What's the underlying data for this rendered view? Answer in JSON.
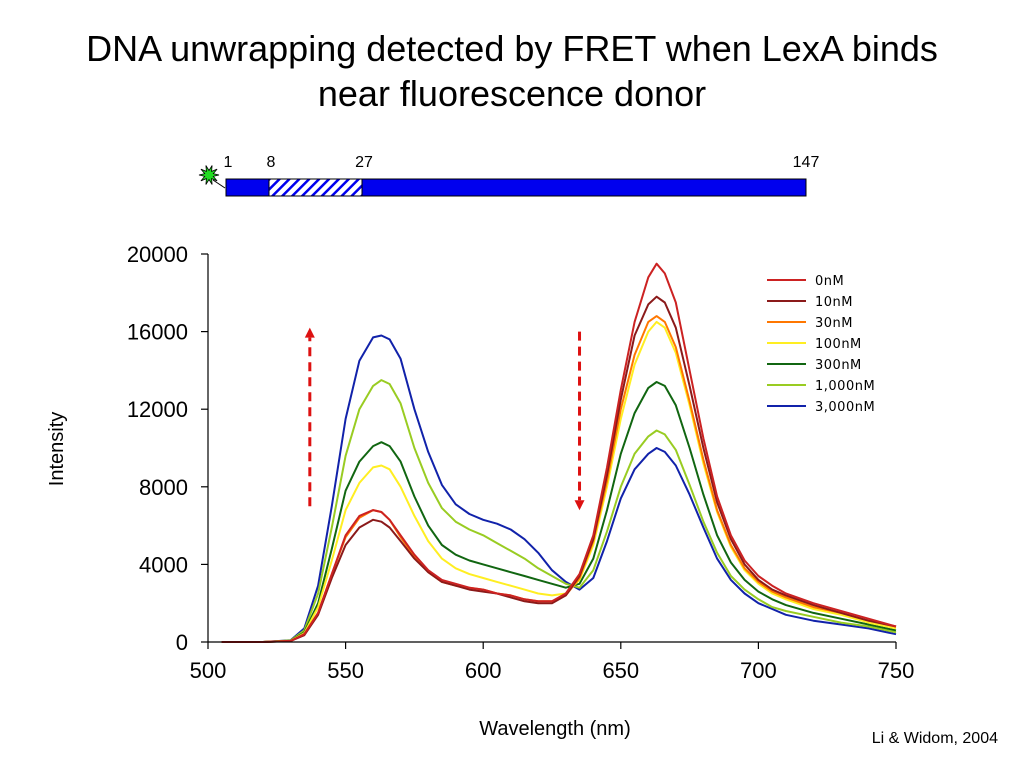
{
  "slide": {
    "title_line1": "DNA unwrapping detected by FRET when LexA binds",
    "title_line2": "near fluorescence donor",
    "credit": "Li & Widom, 2004"
  },
  "dna_map": {
    "positions": [
      "1",
      "8",
      "27",
      "147"
    ],
    "segments": [
      {
        "from": 1,
        "to": 8,
        "style": "solid"
      },
      {
        "from": 8,
        "to": 27,
        "style": "hatched"
      },
      {
        "from": 27,
        "to": 147,
        "style": "solid"
      }
    ],
    "fill_color": "#0000ee",
    "donor_color": "#22dd22"
  },
  "chart_data": {
    "type": "line",
    "xlabel": "Wavelength (nm)",
    "ylabel": "Intensity",
    "xlim": [
      500,
      750
    ],
    "ylim": [
      0,
      20000
    ],
    "xticks": [
      "500",
      "550",
      "600",
      "650",
      "700",
      "750"
    ],
    "yticks": [
      "0",
      "4000",
      "8000",
      "12000",
      "16000",
      "20000"
    ],
    "grid": false,
    "legend_position": "top-right",
    "x": [
      505,
      520,
      530,
      535,
      540,
      545,
      550,
      555,
      560,
      563,
      566,
      570,
      575,
      580,
      585,
      590,
      595,
      600,
      605,
      610,
      615,
      620,
      625,
      630,
      635,
      640,
      645,
      650,
      655,
      660,
      663,
      666,
      670,
      675,
      680,
      685,
      690,
      695,
      700,
      705,
      710,
      720,
      730,
      740,
      750
    ],
    "series": [
      {
        "name": "0nM",
        "color": "#cc2222",
        "values": [
          0,
          0,
          50,
          400,
          1500,
          3500,
          5500,
          6500,
          6800,
          6700,
          6300,
          5500,
          4500,
          3700,
          3200,
          3000,
          2800,
          2700,
          2500,
          2400,
          2200,
          2100,
          2100,
          2500,
          3500,
          5500,
          9000,
          13000,
          16500,
          18800,
          19500,
          19000,
          17500,
          14000,
          10500,
          7500,
          5500,
          4200,
          3400,
          2900,
          2500,
          2000,
          1600,
          1200,
          800
        ]
      },
      {
        "name": "10nM",
        "color": "#8b1a1a",
        "values": [
          0,
          0,
          50,
          350,
          1400,
          3300,
          5000,
          5900,
          6300,
          6200,
          5900,
          5200,
          4300,
          3600,
          3100,
          2900,
          2700,
          2600,
          2500,
          2300,
          2100,
          2000,
          2000,
          2400,
          3400,
          5300,
          8600,
          12500,
          15800,
          17400,
          17800,
          17500,
          16200,
          13200,
          10000,
          7200,
          5300,
          4000,
          3200,
          2700,
          2400,
          1900,
          1500,
          1100,
          800
        ]
      },
      {
        "name": "30nM",
        "color": "#ff7700",
        "values": [
          0,
          0,
          50,
          400,
          1500,
          3500,
          5400,
          6400,
          6800,
          6700,
          6300,
          5400,
          4400,
          3600,
          3100,
          2900,
          2800,
          2700,
          2500,
          2400,
          2200,
          2100,
          2100,
          2400,
          3300,
          5200,
          8300,
          12000,
          14800,
          16500,
          16800,
          16500,
          15200,
          12400,
          9400,
          6800,
          5000,
          3800,
          3100,
          2600,
          2300,
          1800,
          1500,
          1100,
          800
        ]
      },
      {
        "name": "100nM",
        "color": "#ffee22",
        "values": [
          0,
          0,
          60,
          450,
          1800,
          4200,
          6800,
          8200,
          9000,
          9100,
          8900,
          8000,
          6500,
          5200,
          4300,
          3800,
          3500,
          3300,
          3100,
          2900,
          2700,
          2500,
          2400,
          2500,
          3200,
          5000,
          8000,
          11500,
          14300,
          16000,
          16500,
          16200,
          14900,
          12200,
          9200,
          6700,
          4900,
          3700,
          3000,
          2500,
          2200,
          1700,
          1400,
          1000,
          700
        ]
      },
      {
        "name": "300nM",
        "color": "#116611",
        "values": [
          0,
          0,
          70,
          500,
          2000,
          4800,
          7800,
          9300,
          10100,
          10300,
          10100,
          9300,
          7500,
          6000,
          5000,
          4500,
          4200,
          4000,
          3800,
          3600,
          3400,
          3200,
          3000,
          2800,
          3000,
          4300,
          6800,
          9700,
          11800,
          13100,
          13400,
          13200,
          12200,
          10000,
          7600,
          5500,
          4100,
          3200,
          2600,
          2200,
          1900,
          1500,
          1200,
          900,
          600
        ]
      },
      {
        "name": "1,000nM",
        "color": "#99cc22",
        "values": [
          0,
          0,
          80,
          600,
          2500,
          5900,
          9600,
          12000,
          13200,
          13500,
          13300,
          12300,
          10000,
          8200,
          6900,
          6200,
          5800,
          5500,
          5100,
          4700,
          4300,
          3800,
          3400,
          3000,
          2800,
          3700,
          5700,
          8000,
          9700,
          10600,
          10900,
          10700,
          9900,
          8100,
          6200,
          4600,
          3400,
          2700,
          2200,
          1800,
          1600,
          1300,
          1000,
          800,
          500
        ]
      },
      {
        "name": "3,000nM",
        "color": "#1122aa",
        "values": [
          0,
          0,
          90,
          700,
          2900,
          7000,
          11500,
          14500,
          15700,
          15800,
          15600,
          14600,
          12000,
          9800,
          8100,
          7100,
          6600,
          6300,
          6100,
          5800,
          5300,
          4600,
          3700,
          3100,
          2700,
          3300,
          5200,
          7400,
          8900,
          9700,
          10000,
          9800,
          9100,
          7600,
          5900,
          4300,
          3200,
          2500,
          2000,
          1700,
          1400,
          1100,
          900,
          700,
          400
        ]
      }
    ],
    "annotations": [
      {
        "type": "arrow",
        "direction": "up",
        "x": 537,
        "y_from": 7000,
        "y_to": 16000,
        "color": "#dd1111",
        "style": "dashed"
      },
      {
        "type": "arrow",
        "direction": "down",
        "x": 635,
        "y_from": 16000,
        "y_to": 7000,
        "color": "#dd1111",
        "style": "dashed"
      }
    ]
  }
}
